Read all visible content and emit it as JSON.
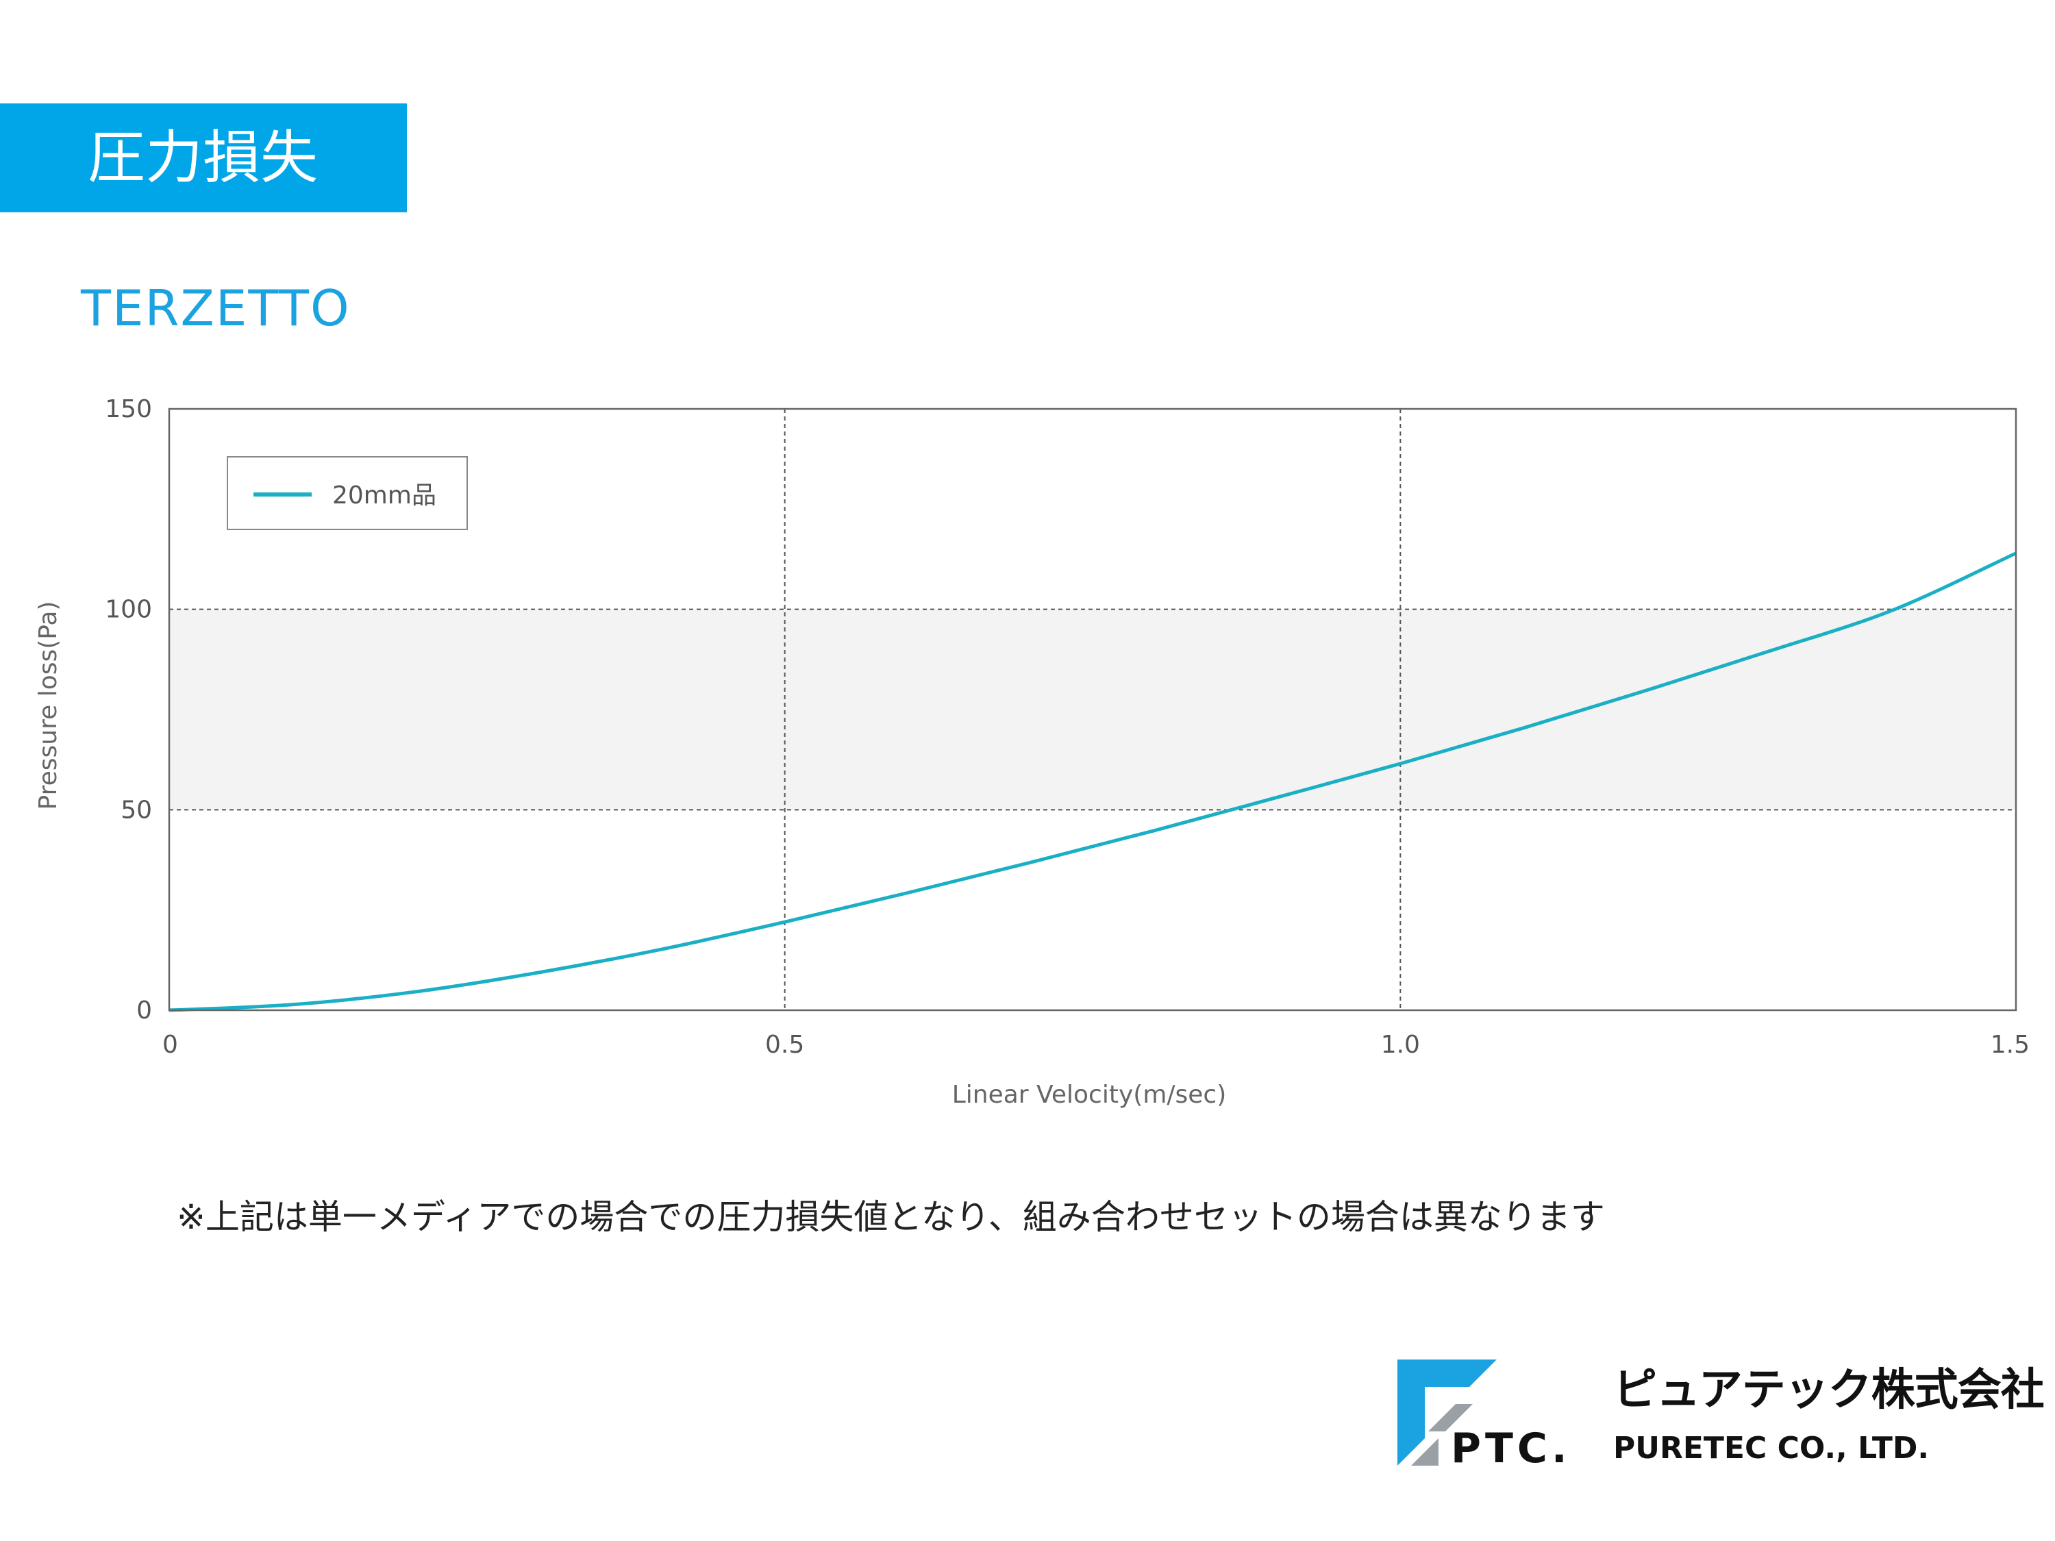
{
  "header": {
    "title": "圧力損失",
    "band_color": "#00a6e8"
  },
  "product": {
    "name": "TERZETTO",
    "color": "#1aa3e0"
  },
  "chart_data": {
    "type": "line",
    "title": "",
    "xlabel": "Linear Velocity(m/sec)",
    "ylabel": "Pressure loss(Pa)",
    "xlim": [
      0,
      1.5
    ],
    "ylim": [
      0,
      150
    ],
    "xticks": [
      0,
      0.5,
      1.0,
      1.5
    ],
    "xtick_labels": [
      "0",
      "0.5",
      "1.0",
      "1.5"
    ],
    "yticks": [
      0,
      50,
      100,
      150
    ],
    "ytick_labels": [
      "0",
      "50",
      "100",
      "150"
    ],
    "grid": true,
    "shaded_band": [
      50,
      100
    ],
    "legend_position": "top-left",
    "series": [
      {
        "name": "20mm品",
        "color": "#1aafc4",
        "x": [
          0,
          0.1,
          0.2,
          0.3,
          0.4,
          0.5,
          0.6,
          0.7,
          0.8,
          0.9,
          1.0,
          1.1,
          1.2,
          1.3,
          1.4,
          1.5
        ],
        "y": [
          0,
          1.4,
          4.6,
          9.4,
          15.2,
          22.0,
          29.3,
          36.9,
          44.8,
          53.1,
          61.5,
          70.4,
          79.8,
          89.6,
          99.8,
          114.0
        ]
      }
    ]
  },
  "note": "※上記は単一メディアでの場合での圧力損失値となり、組み合わせセットの場合は異なります",
  "company": {
    "logo_text": "PTC.",
    "name_ja": "ピュアテック株式会社",
    "name_en": "PURETEC CO., LTD."
  }
}
